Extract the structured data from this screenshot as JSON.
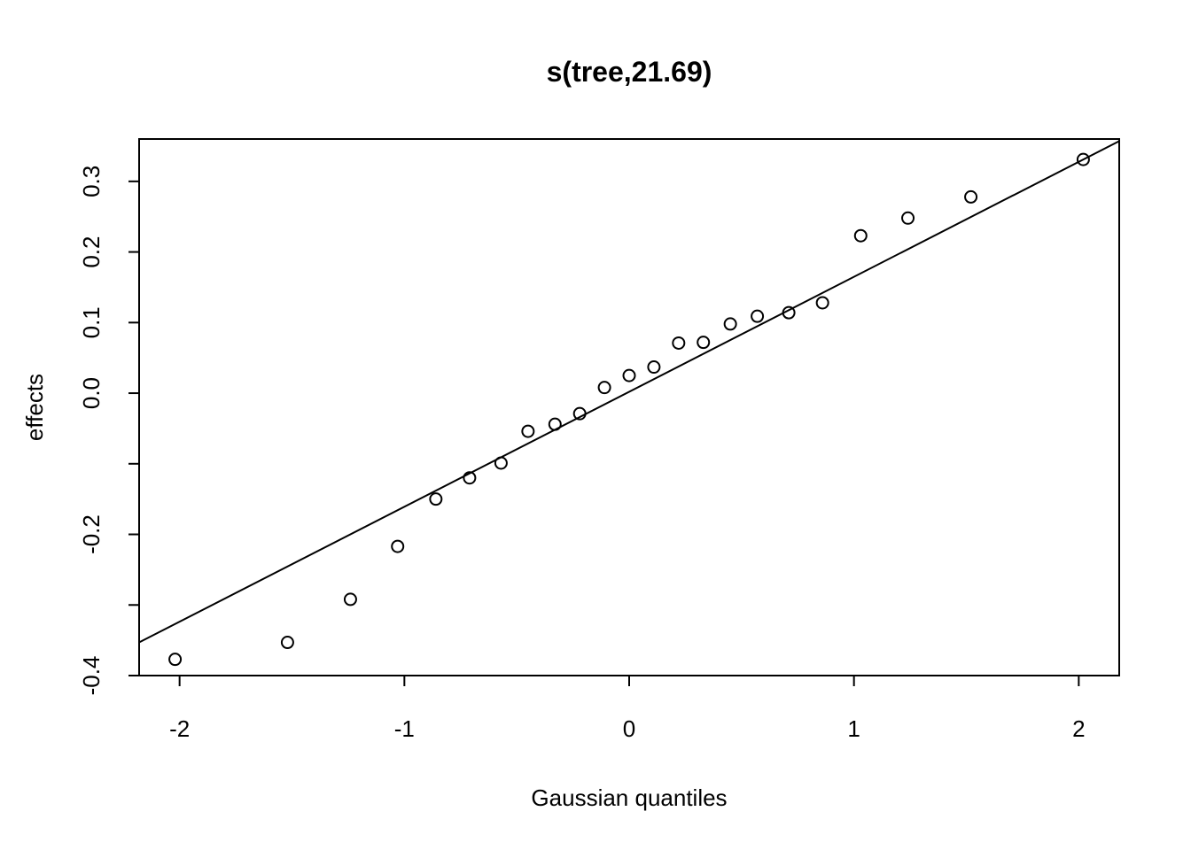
{
  "chart_data": {
    "type": "scatter",
    "title": "s(tree,21.69)",
    "xlabel": "Gaussian quantiles",
    "ylabel": "effects",
    "xlim": [
      -2.18,
      2.18
    ],
    "ylim": [
      -0.4,
      0.36
    ],
    "x_ticks": [
      -2,
      -1,
      0,
      1,
      2
    ],
    "x_tick_labels": [
      "-2",
      "-1",
      "0",
      "1",
      "2"
    ],
    "y_ticks": [
      -0.4,
      -0.3,
      -0.2,
      -0.1,
      0.0,
      0.1,
      0.2,
      0.3
    ],
    "y_tick_labels": [
      "-0.4",
      "",
      "-0.2",
      "",
      "0.0",
      "0.1",
      "0.2",
      "0.3"
    ],
    "grid": false,
    "legend": "none",
    "points": {
      "x": [
        -2.02,
        -1.52,
        -1.24,
        -1.03,
        -0.86,
        -0.71,
        -0.57,
        -0.45,
        -0.33,
        -0.22,
        -0.11,
        0.0,
        0.11,
        0.22,
        0.33,
        0.45,
        0.57,
        0.71,
        0.86,
        1.03,
        1.24,
        1.52,
        2.02
      ],
      "y": [
        -0.377,
        -0.353,
        -0.292,
        -0.217,
        -0.15,
        -0.12,
        -0.099,
        -0.054,
        -0.044,
        -0.029,
        0.008,
        0.025,
        0.037,
        0.071,
        0.072,
        0.098,
        0.109,
        0.114,
        0.128,
        0.223,
        0.248,
        0.278,
        0.331
      ]
    },
    "reference_line": {
      "x": [
        -2.18,
        2.18
      ],
      "y": [
        -0.353,
        0.357
      ]
    }
  }
}
